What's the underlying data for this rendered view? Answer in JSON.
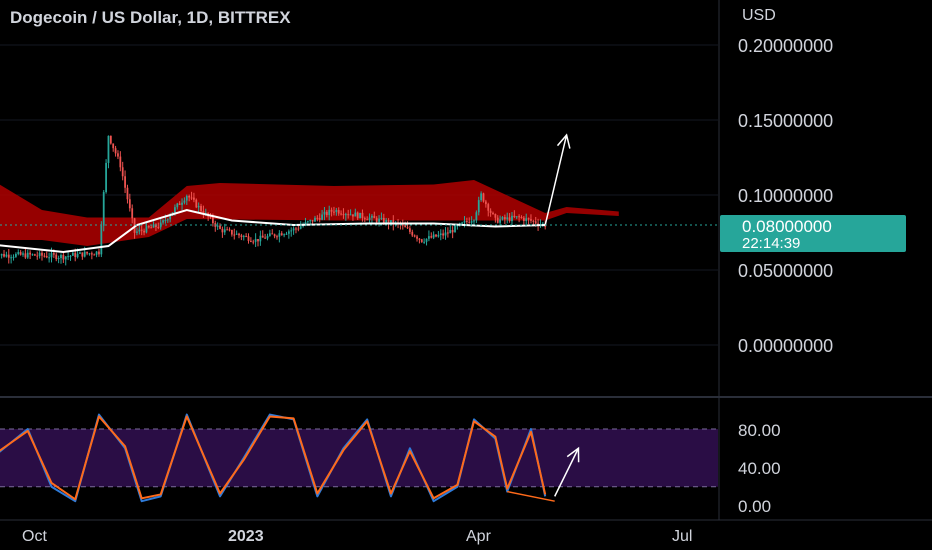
{
  "header": {
    "symbol_title": "Dogecoin / US Dollar, 1D, BITTREX"
  },
  "price_axis": {
    "currency": "USD",
    "ticks": [
      "0.20000000",
      "0.15000000",
      "0.10000000",
      "0.05000000",
      "0.00000000"
    ],
    "current_price": "0.08000000",
    "countdown": "22:14:39"
  },
  "oscillator_axis": {
    "ticks": [
      "80.00",
      "40.00",
      "0.00"
    ]
  },
  "time_axis": {
    "ticks": [
      "Oct",
      "2023",
      "Apr",
      "Jul"
    ]
  },
  "colors": {
    "background": "#000000",
    "cloud": "#b00000",
    "candle_up": "#26a69a",
    "candle_down": "#ef5350",
    "moving_average": "#ffffff",
    "price_badge": "#26a69a",
    "stoch_k": "#2f7bd8",
    "stoch_d": "#ff6a1a",
    "stoch_band": "#2a0d45",
    "arrow": "#ffffff"
  },
  "chart_data": [
    {
      "type": "candlestick",
      "title": "Dogecoin / US Dollar, 1D, BITTREX",
      "ylabel": "USD",
      "ylim": [
        0,
        0.2
      ],
      "x_ticks": [
        "Oct",
        "2023",
        "Apr",
        "Jul"
      ],
      "last_price": 0.08,
      "close_path": [
        {
          "x": "Sep 10",
          "y": 0.06
        },
        {
          "x": "Sep 25",
          "y": 0.06
        },
        {
          "x": "Oct 10",
          "y": 0.059
        },
        {
          "x": "Oct 25",
          "y": 0.062
        },
        {
          "x": "Oct 29",
          "y": 0.14
        },
        {
          "x": "Nov 3",
          "y": 0.12
        },
        {
          "x": "Nov 9",
          "y": 0.075
        },
        {
          "x": "Nov 20",
          "y": 0.08
        },
        {
          "x": "Dec 1",
          "y": 0.1
        },
        {
          "x": "Dec 15",
          "y": 0.077
        },
        {
          "x": "Dec 30",
          "y": 0.07
        },
        {
          "x": "Jan 15",
          "y": 0.077
        },
        {
          "x": "Feb 1",
          "y": 0.09
        },
        {
          "x": "Feb 15",
          "y": 0.085
        },
        {
          "x": "Mar 1",
          "y": 0.08
        },
        {
          "x": "Mar 10",
          "y": 0.07
        },
        {
          "x": "Mar 20",
          "y": 0.074
        },
        {
          "x": "Apr 1",
          "y": 0.085
        },
        {
          "x": "Apr 4",
          "y": 0.1
        },
        {
          "x": "Apr 10",
          "y": 0.083
        },
        {
          "x": "Apr 20",
          "y": 0.085
        },
        {
          "x": "May 1",
          "y": 0.08
        }
      ],
      "moving_average": [
        {
          "x": "Sep 10",
          "y": 0.067
        },
        {
          "x": "Oct 10",
          "y": 0.062
        },
        {
          "x": "Oct 29",
          "y": 0.066
        },
        {
          "x": "Nov 10",
          "y": 0.08
        },
        {
          "x": "Dec 1",
          "y": 0.09
        },
        {
          "x": "Dec 20",
          "y": 0.083
        },
        {
          "x": "Jan 15",
          "y": 0.08
        },
        {
          "x": "Feb 15",
          "y": 0.081
        },
        {
          "x": "Mar 15",
          "y": 0.081
        },
        {
          "x": "Apr 10",
          "y": 0.079
        },
        {
          "x": "May 1",
          "y": 0.08
        }
      ],
      "cloud_top": [
        {
          "x": "Sep 10",
          "y": 0.11
        },
        {
          "x": "Oct 1",
          "y": 0.09
        },
        {
          "x": "Oct 20",
          "y": 0.085
        },
        {
          "x": "Nov 15",
          "y": 0.085
        },
        {
          "x": "Dec 1",
          "y": 0.106
        },
        {
          "x": "Dec 15",
          "y": 0.108
        },
        {
          "x": "Feb 1",
          "y": 0.106
        },
        {
          "x": "Mar 15",
          "y": 0.107
        },
        {
          "x": "Apr 1",
          "y": 0.11
        },
        {
          "x": "May 1",
          "y": 0.088
        },
        {
          "x": "May 10",
          "y": 0.092
        },
        {
          "x": "Jun 1",
          "y": 0.089
        }
      ],
      "cloud_bottom": [
        {
          "x": "Sep 10",
          "y": 0.07
        },
        {
          "x": "Oct 1",
          "y": 0.07
        },
        {
          "x": "Oct 20",
          "y": 0.066
        },
        {
          "x": "Nov 15",
          "y": 0.072
        },
        {
          "x": "Dec 1",
          "y": 0.084
        },
        {
          "x": "Feb 1",
          "y": 0.083
        },
        {
          "x": "Mar 15",
          "y": 0.083
        },
        {
          "x": "Apr 1",
          "y": 0.083
        },
        {
          "x": "May 1",
          "y": 0.083
        },
        {
          "x": "May 10",
          "y": 0.088
        },
        {
          "x": "Jun 1",
          "y": 0.086
        }
      ],
      "arrow": {
        "from": {
          "x": "May 1",
          "y": 0.08
        },
        "to": {
          "x": "May 10",
          "y": 0.14
        }
      }
    },
    {
      "type": "line",
      "ylim": [
        0,
        100
      ],
      "band": [
        20,
        80
      ],
      "y_ticks": [
        "80.00",
        "40.00",
        "0.00"
      ],
      "series": [
        {
          "values": [
            {
              "x": "Sep 10",
              "y": 50
            },
            {
              "x": "Sep 25",
              "y": 80
            },
            {
              "x": "Oct 5",
              "y": 20
            },
            {
              "x": "Oct 15",
              "y": 5
            },
            {
              "x": "Oct 25",
              "y": 95
            },
            {
              "x": "Nov 5",
              "y": 60
            },
            {
              "x": "Nov 12",
              "y": 5
            },
            {
              "x": "Nov 20",
              "y": 10
            },
            {
              "x": "Dec 1",
              "y": 95
            },
            {
              "x": "Dec 15",
              "y": 10
            },
            {
              "x": "Dec 25",
              "y": 50
            },
            {
              "x": "Jan 5",
              "y": 95
            },
            {
              "x": "Jan 15",
              "y": 90
            },
            {
              "x": "Jan 25",
              "y": 10
            },
            {
              "x": "Feb 5",
              "y": 60
            },
            {
              "x": "Feb 15",
              "y": 90
            },
            {
              "x": "Feb 25",
              "y": 10
            },
            {
              "x": "Mar 5",
              "y": 60
            },
            {
              "x": "Mar 15",
              "y": 5
            },
            {
              "x": "Mar 25",
              "y": 20
            },
            {
              "x": "Apr 1",
              "y": 90
            },
            {
              "x": "Apr 10",
              "y": 70
            },
            {
              "x": "Apr 15",
              "y": 15
            },
            {
              "x": "Apr 25",
              "y": 80
            },
            {
              "x": "May 1",
              "y": 10
            }
          ]
        },
        {
          "values": [
            {
              "x": "Sep 10",
              "y": 52
            },
            {
              "x": "Sep 25",
              "y": 78
            },
            {
              "x": "Oct 5",
              "y": 24
            },
            {
              "x": "Oct 15",
              "y": 7
            },
            {
              "x": "Oct 25",
              "y": 93
            },
            {
              "x": "Nov 5",
              "y": 62
            },
            {
              "x": "Nov 12",
              "y": 8
            },
            {
              "x": "Nov 20",
              "y": 12
            },
            {
              "x": "Dec 1",
              "y": 93
            },
            {
              "x": "Dec 15",
              "y": 13
            },
            {
              "x": "Dec 25",
              "y": 48
            },
            {
              "x": "Jan 5",
              "y": 93
            },
            {
              "x": "Jan 15",
              "y": 91
            },
            {
              "x": "Jan 25",
              "y": 13
            },
            {
              "x": "Feb 5",
              "y": 58
            },
            {
              "x": "Feb 15",
              "y": 88
            },
            {
              "x": "Feb 25",
              "y": 13
            },
            {
              "x": "Mar 5",
              "y": 57
            },
            {
              "x": "Mar 15",
              "y": 8
            },
            {
              "x": "Mar 25",
              "y": 22
            },
            {
              "x": "Apr 1",
              "y": 88
            },
            {
              "x": "Apr 10",
              "y": 72
            },
            {
              "x": "Apr 15",
              "y": 18
            },
            {
              "x": "Apr 25",
              "y": 77
            },
            {
              "x": "May 1",
              "y": 12
            }
          ]
        }
      ],
      "divergence_line": {
        "from": {
          "x": "Apr 15",
          "y": 15
        },
        "to": {
          "x": "May 5",
          "y": 5
        }
      },
      "arrow": {
        "from": {
          "x": "May 5",
          "y": 10
        },
        "to": {
          "x": "May 15",
          "y": 60
        }
      }
    }
  ]
}
